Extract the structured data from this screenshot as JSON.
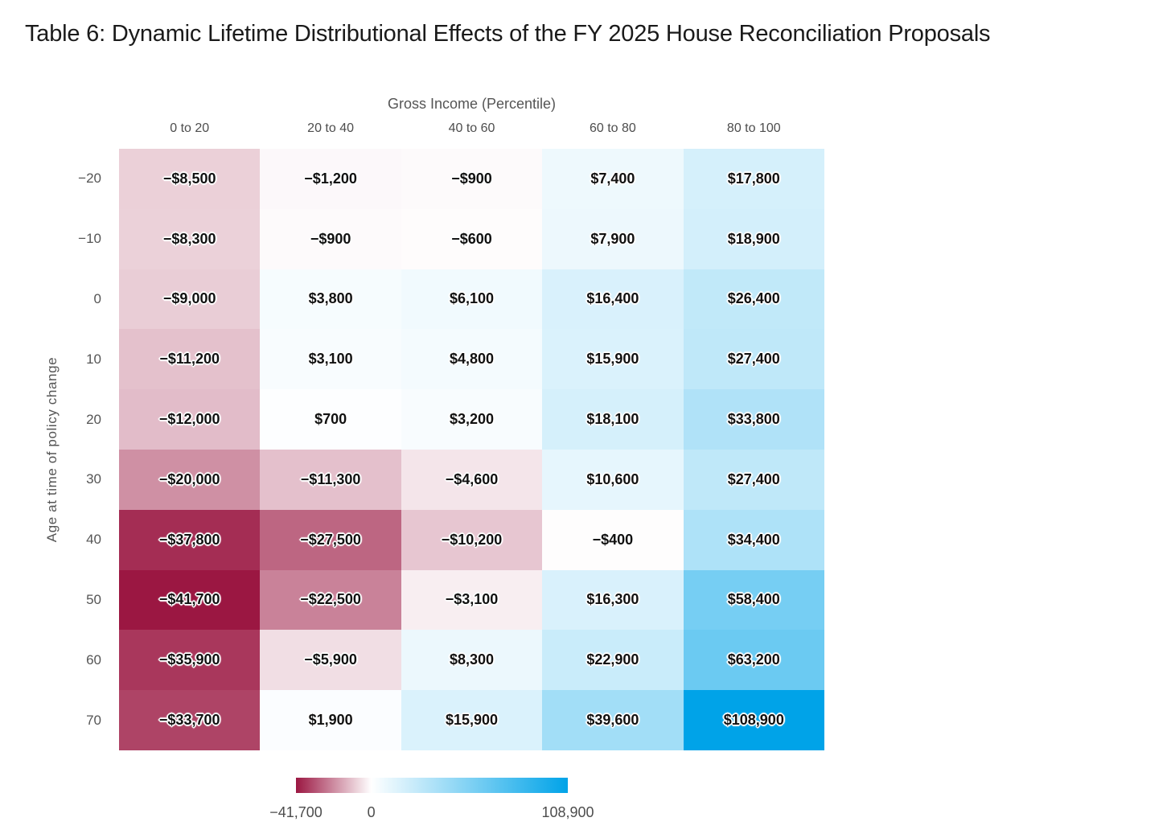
{
  "title": "Table 6: Dynamic Lifetime Distributional Effects of the FY 2025 House Reconciliation Proposals",
  "chart_data": {
    "type": "heatmap",
    "x_axis_title": "Gross Income (Percentile)",
    "y_axis_title": "Age at time of policy change",
    "columns": [
      "0 to 20",
      "20 to 40",
      "40 to 60",
      "60 to 80",
      "80 to 100"
    ],
    "rows": [
      "−20",
      "−10",
      "0",
      "10",
      "20",
      "30",
      "40",
      "50",
      "60",
      "70"
    ],
    "values": [
      [
        -8500,
        -1200,
        -900,
        7400,
        17800
      ],
      [
        -8300,
        -900,
        -600,
        7900,
        18900
      ],
      [
        -9000,
        3800,
        6100,
        16400,
        26400
      ],
      [
        -11200,
        3100,
        4800,
        15900,
        27400
      ],
      [
        -12000,
        700,
        3200,
        18100,
        33800
      ],
      [
        -20000,
        -11300,
        -4600,
        10600,
        27400
      ],
      [
        -37800,
        -27500,
        -10200,
        -400,
        34400
      ],
      [
        -41700,
        -22500,
        -3100,
        16300,
        58400
      ],
      [
        -35900,
        -5900,
        8300,
        22900,
        63200
      ],
      [
        -33700,
        1900,
        15900,
        39600,
        108900
      ]
    ],
    "labels": [
      [
        "−$8,500",
        "−$1,200",
        "−$900",
        "$7,400",
        "$17,800"
      ],
      [
        "−$8,300",
        "−$900",
        "−$600",
        "$7,900",
        "$18,900"
      ],
      [
        "−$9,000",
        "$3,800",
        "$6,100",
        "$16,400",
        "$26,400"
      ],
      [
        "−$11,200",
        "$3,100",
        "$4,800",
        "$15,900",
        "$27,400"
      ],
      [
        "−$12,000",
        "$700",
        "$3,200",
        "$18,100",
        "$33,800"
      ],
      [
        "−$20,000",
        "−$11,300",
        "−$4,600",
        "$10,600",
        "$27,400"
      ],
      [
        "−$37,800",
        "−$27,500",
        "−$10,200",
        "−$400",
        "$34,400"
      ],
      [
        "−$41,700",
        "−$22,500",
        "−$3,100",
        "$16,300",
        "$58,400"
      ],
      [
        "−$35,900",
        "−$5,900",
        "$8,300",
        "$22,900",
        "$63,200"
      ],
      [
        "−$33,700",
        "$1,900",
        "$15,900",
        "$39,600",
        "$108,900"
      ]
    ],
    "color_domain": [
      -41700,
      108900
    ],
    "colors": {
      "negative_end": "#9B1742",
      "zero": "#FFFFFF",
      "positive_end": "#00A3E8"
    },
    "legend": {
      "min_label": "−41,700",
      "zero_label": "0",
      "max_label": "108,900"
    }
  }
}
